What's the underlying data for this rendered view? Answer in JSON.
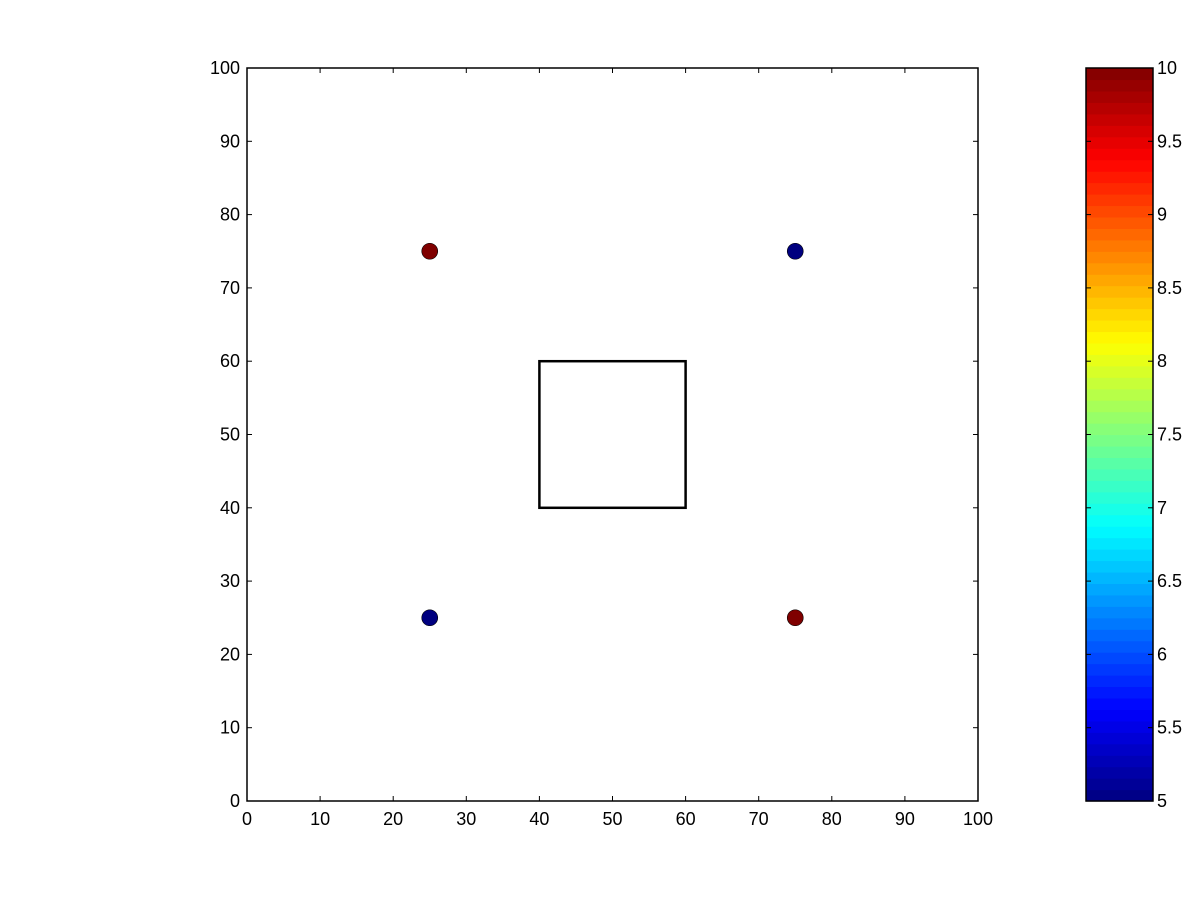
{
  "chart_data": {
    "type": "scatter",
    "title": "",
    "xlabel": "",
    "ylabel": "",
    "xlim": [
      0,
      100
    ],
    "ylim": [
      0,
      100
    ],
    "xticks": [
      0,
      10,
      20,
      30,
      40,
      50,
      60,
      70,
      80,
      90,
      100
    ],
    "yticks": [
      0,
      10,
      20,
      30,
      40,
      50,
      60,
      70,
      80,
      90,
      100
    ],
    "grid": false,
    "points": [
      {
        "x": 25,
        "y": 75,
        "value": 10
      },
      {
        "x": 75,
        "y": 75,
        "value": 5
      },
      {
        "x": 25,
        "y": 25,
        "value": 5
      },
      {
        "x": 75,
        "y": 25,
        "value": 10
      }
    ],
    "rectangle": {
      "x0": 40,
      "y0": 40,
      "x1": 60,
      "y1": 60
    },
    "colorbar": {
      "colormap": "jet",
      "min": 5,
      "max": 10,
      "ticks": [
        "5",
        "5.5",
        "6",
        "6.5",
        "7",
        "7.5",
        "8",
        "8.5",
        "9",
        "9.5",
        "10"
      ],
      "low_color": "#00007f",
      "high_color": "#7f0000"
    }
  }
}
